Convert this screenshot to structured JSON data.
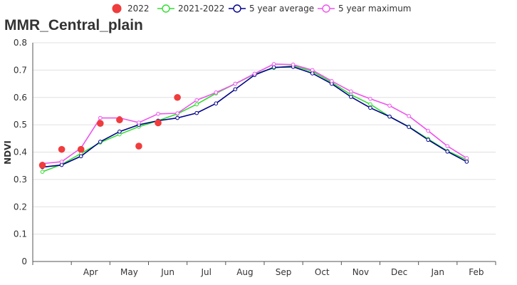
{
  "chart_data": {
    "type": "line",
    "title": "MMR_Central_plain",
    "ylabel": "NDVI",
    "xlabel": "",
    "ylim": [
      0,
      0.8
    ],
    "yticks": [
      "0",
      "0.1",
      "0.2",
      "0.3",
      "0.4",
      "0.5",
      "0.6",
      "0.7",
      "0.8"
    ],
    "month_labels": [
      "Apr",
      "May",
      "Jun",
      "Jul",
      "Aug",
      "Sep",
      "Oct",
      "Nov",
      "Dec",
      "Jan",
      "Feb"
    ],
    "legend_position": "top-center",
    "grid": true,
    "x": [
      "Mar-1",
      "Mar-2",
      "Apr-1",
      "Apr-2",
      "May-1",
      "May-2",
      "Jun-1",
      "Jun-2",
      "Jul-1",
      "Jul-2",
      "Aug-1",
      "Aug-2",
      "Sep-1",
      "Sep-2",
      "Oct-1",
      "Oct-2",
      "Nov-1",
      "Nov-2",
      "Dec-1",
      "Dec-2",
      "Jan-1",
      "Jan-2",
      "Feb-1",
      "Feb-2"
    ],
    "series": [
      {
        "name": "2022",
        "kind": "scatter",
        "color": "#f03c3c",
        "values": [
          0.352,
          0.41,
          0.41,
          0.505,
          0.518,
          0.422,
          0.507,
          0.6,
          null,
          null,
          null,
          null,
          null,
          null,
          null,
          null,
          null,
          null,
          null,
          null,
          null,
          null,
          null,
          null
        ]
      },
      {
        "name": "2021-2022",
        "kind": "line",
        "color": "#33dd33",
        "values": [
          0.328,
          0.355,
          0.395,
          0.435,
          0.465,
          0.493,
          0.515,
          0.54,
          0.575,
          0.615,
          0.65,
          0.685,
          0.708,
          0.716,
          0.695,
          0.655,
          0.61,
          0.575,
          0.53,
          0.493,
          0.448,
          0.404,
          0.372,
          null
        ]
      },
      {
        "name": "5 year average",
        "kind": "line",
        "color": "#00008b",
        "values": [
          0.345,
          0.353,
          0.385,
          0.438,
          0.475,
          0.5,
          0.515,
          0.525,
          0.543,
          0.578,
          0.63,
          0.682,
          0.71,
          0.712,
          0.688,
          0.65,
          0.602,
          0.562,
          0.53,
          0.492,
          0.445,
          0.402,
          0.365,
          null
        ]
      },
      {
        "name": "5 year maximum",
        "kind": "line",
        "color": "#ee55ee",
        "values": [
          0.358,
          0.365,
          0.415,
          0.525,
          0.525,
          0.508,
          0.54,
          0.542,
          0.59,
          0.618,
          0.65,
          0.687,
          0.722,
          0.72,
          0.7,
          0.66,
          0.622,
          0.595,
          0.57,
          0.532,
          0.478,
          0.422,
          0.378,
          null
        ]
      }
    ]
  }
}
